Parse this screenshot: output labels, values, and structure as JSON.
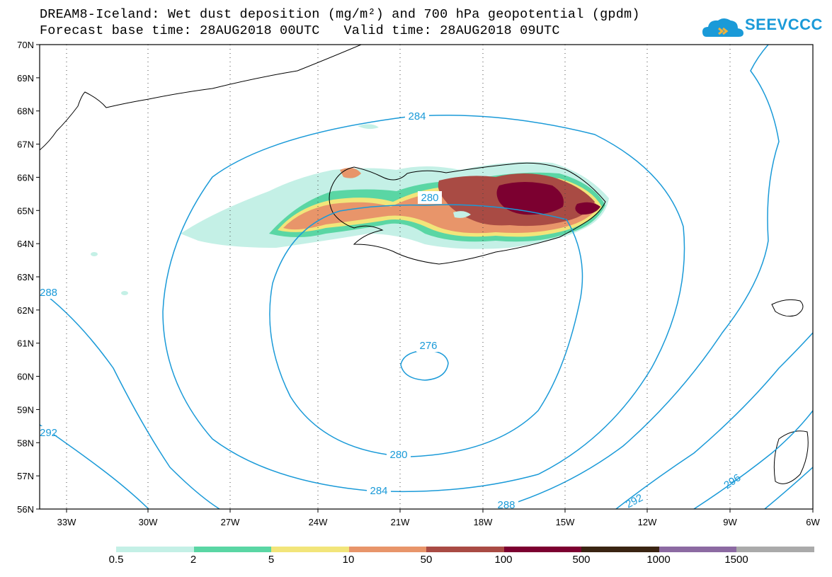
{
  "title": {
    "line1": "DREAM8-Iceland: Wet dust deposition (mg/m²) and 700 hPa geopotential (gpdm)",
    "line2": "Forecast base time: 28AUG2018 00UTC   Valid time: 28AUG2018 09UTC"
  },
  "logo": {
    "text": "SEEVCCC",
    "icon": "cloud-logo-icon",
    "color": "#1a9ad8"
  },
  "map": {
    "lon_range": [
      -34.5,
      -6
    ],
    "lat_range": [
      56,
      70
    ],
    "x_ticks": [
      "33W",
      "30W",
      "27W",
      "24W",
      "21W",
      "18W",
      "15W",
      "12W",
      "9W",
      "6W"
    ],
    "y_ticks": [
      "70N",
      "69N",
      "68N",
      "67N",
      "66N",
      "65N",
      "64N",
      "63N",
      "62N",
      "61N",
      "60N",
      "59N",
      "58N",
      "57N",
      "56N"
    ],
    "grid": "dotted",
    "contour_color": "#1a9ad8",
    "contour_labels": [
      "284",
      "280",
      "276",
      "280",
      "284",
      "288",
      "288",
      "292",
      "292",
      "296"
    ]
  },
  "legend": {
    "levels": [
      "0.5",
      "2",
      "5",
      "10",
      "50",
      "100",
      "500",
      "1000",
      "1500"
    ],
    "colors": [
      "#c4f0e6",
      "#5ad6a4",
      "#f2e57a",
      "#e8956a",
      "#a94b44",
      "#7c0030",
      "#3a2412",
      "#8c6aa2",
      "#aaaaaa"
    ]
  }
}
